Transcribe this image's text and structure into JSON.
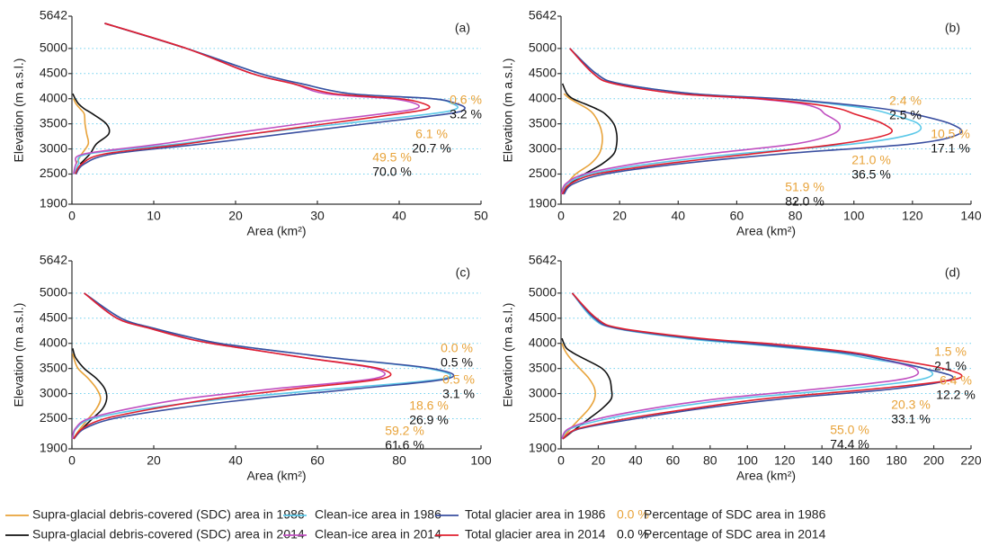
{
  "chart_data": [
    {
      "type": "line",
      "title": "(a)",
      "xlabel": "Area (km²)",
      "ylabel": "Elevation (m a.s.l.)",
      "xlim": [
        0,
        50
      ],
      "xticks": [
        0,
        10,
        20,
        30,
        40,
        50
      ],
      "ylim": [
        1900,
        5642
      ],
      "yticks": [
        1900,
        2500,
        3000,
        3500,
        4000,
        4500,
        5000,
        5642
      ],
      "grid": true,
      "y": [
        2100,
        2300,
        2500,
        2700,
        2900,
        3100,
        3300,
        3500,
        3700,
        3800,
        3900,
        4000,
        4100,
        4300,
        4500,
        5000,
        5500
      ],
      "series": [
        {
          "name": "Supra-glacial debris-covered (SDC) area in 1986",
          "color": "#e8a33a",
          "values": [
            null,
            null,
            null,
            0.5,
            1.2,
            2,
            1.8,
            1.6,
            1.5,
            1,
            0.5,
            0.2,
            null,
            null,
            null,
            null,
            null
          ]
        },
        {
          "name": "Supra-glacial debris-covered (SDC) area in 2014",
          "color": "#111111",
          "values": [
            null,
            null,
            null,
            1,
            2.2,
            3,
            4.5,
            4.2,
            2.5,
            1.5,
            0.8,
            0.4,
            0.1,
            null,
            null,
            null,
            null
          ]
        },
        {
          "name": "Clean-ice area in 1986",
          "color": "#5bc8e8",
          "values": [
            null,
            null,
            0.3,
            0.8,
            2,
            13,
            22,
            33,
            44,
            47,
            46.5,
            44,
            34,
            28,
            23,
            14,
            4
          ]
        },
        {
          "name": "Clean-ice area in 2014",
          "color": "#c04fc0",
          "values": [
            null,
            null,
            0.2,
            0.5,
            1.5,
            11,
            19,
            28,
            38,
            42,
            42,
            39,
            31,
            27,
            22,
            14,
            4
          ]
        },
        {
          "name": "Total glacier area in 1986",
          "color": "#3a4fa0",
          "values": [
            null,
            null,
            0.5,
            1.5,
            5,
            16,
            26,
            36,
            46,
            48,
            47,
            44,
            34,
            28,
            23,
            14,
            4
          ]
        },
        {
          "name": "Total glacier area in 2014",
          "color": "#e0202f",
          "values": [
            null,
            null,
            0.4,
            1.2,
            4,
            14,
            22,
            31,
            40,
            43.5,
            43,
            40,
            32,
            27,
            22,
            14,
            4
          ]
        }
      ],
      "percentages": [
        {
          "name": "Percentage of SDC area in 1986",
          "legend_sample": "0.0 %",
          "color": "#e8a33a",
          "values": [
            0.6,
            6.1,
            49.5
          ],
          "value_labels": [
            "0.6 %",
            "6.1 %",
            "49.5 %"
          ]
        },
        {
          "name": "Percentage of SDC area in 2014",
          "legend_sample": "0.0 %",
          "color": "#111111",
          "values": [
            3.2,
            20.7,
            70.0
          ],
          "value_labels": [
            "3.2 %",
            "20.7 %",
            "70.0 %"
          ]
        }
      ]
    },
    {
      "type": "line",
      "title": "(b)",
      "xlabel": "Area (km²)",
      "ylabel": "Elevation (m a.s.l.)",
      "xlim": [
        0,
        140
      ],
      "xticks": [
        0,
        20,
        40,
        60,
        80,
        100,
        120,
        140
      ],
      "ylim": [
        1900,
        5642
      ],
      "yticks": [
        1900,
        2500,
        3000,
        3500,
        4000,
        4500,
        5000,
        5642
      ],
      "grid": true,
      "y": [
        2100,
        2300,
        2500,
        2700,
        2900,
        3100,
        3300,
        3500,
        3700,
        3800,
        3900,
        4000,
        4100,
        4300,
        4500,
        5000,
        5500
      ],
      "series": [
        {
          "color": "#e8a33a",
          "values": [
            0.3,
            2,
            5,
            10,
            13,
            14,
            14,
            13,
            11,
            9,
            6,
            3,
            1,
            null,
            null,
            null,
            null
          ]
        },
        {
          "color": "#111111",
          "values": [
            0.5,
            3,
            8,
            14,
            18,
            19,
            19,
            18,
            15,
            12,
            8,
            4,
            2,
            0.5,
            null,
            null,
            null
          ]
        },
        {
          "color": "#5bc8e8",
          "values": [
            0.3,
            2,
            10,
            30,
            60,
            100,
            120,
            122,
            112,
            105,
            92,
            74,
            45,
            20,
            12,
            3,
            null
          ]
        },
        {
          "color": "#c04fc0",
          "values": [
            0.2,
            1.5,
            8,
            25,
            50,
            80,
            93,
            95,
            90,
            88,
            82,
            66,
            40,
            18,
            11,
            3,
            null
          ]
        },
        {
          "color": "#3a4fa0",
          "values": [
            1,
            4,
            15,
            40,
            75,
            120,
            136,
            133,
            120,
            110,
            95,
            75,
            45,
            20,
            12,
            3,
            null
          ]
        },
        {
          "color": "#e0202f",
          "values": [
            0.5,
            3,
            12,
            35,
            65,
            95,
            112,
            110,
            100,
            95,
            85,
            68,
            40,
            18,
            11,
            3,
            null
          ]
        }
      ],
      "percentages": [
        {
          "color": "#e8a33a",
          "values": [
            2.4,
            10.5,
            21.0,
            51.9
          ],
          "value_labels": [
            "2.4 %",
            "10.5 %",
            "21.0 %",
            "51.9 %"
          ]
        },
        {
          "color": "#111111",
          "values": [
            2.5,
            17.1,
            36.5,
            82.0
          ],
          "value_labels": [
            "2.5 %",
            "17.1 %",
            "36.5 %",
            "82.0 %"
          ]
        }
      ]
    },
    {
      "type": "line",
      "title": "(c)",
      "xlabel": "Area (km²)",
      "ylabel": "Elevation (m a.s.l.)",
      "xlim": [
        0,
        100
      ],
      "xticks": [
        0,
        20,
        40,
        60,
        80,
        100
      ],
      "ylim": [
        1900,
        5642
      ],
      "yticks": [
        1900,
        2500,
        3000,
        3500,
        4000,
        4500,
        5000,
        5642
      ],
      "grid": true,
      "y": [
        2100,
        2300,
        2500,
        2700,
        2900,
        3100,
        3300,
        3500,
        3700,
        3800,
        3900,
        4000,
        4100,
        4300,
        4500,
        5000,
        5500
      ],
      "series": [
        {
          "color": "#e8a33a",
          "values": [
            0.3,
            2,
            4,
            6,
            7,
            6,
            4,
            1.5,
            0.5,
            0.2,
            null,
            null,
            null,
            null,
            null,
            null,
            null
          ]
        },
        {
          "color": "#111111",
          "values": [
            0.4,
            2.5,
            5,
            7.5,
            8.5,
            8,
            6,
            3,
            1,
            0.5,
            0.2,
            null,
            null,
            null,
            null,
            null,
            null
          ]
        },
        {
          "color": "#5bc8e8",
          "values": [
            0.2,
            1,
            5,
            18,
            38,
            65,
            91,
            87,
            65,
            55,
            45,
            36,
            30,
            20,
            12,
            3,
            null
          ]
        },
        {
          "color": "#c04fc0",
          "values": [
            0.1,
            0.8,
            4,
            14,
            28,
            50,
            74,
            74,
            58,
            50,
            42,
            34,
            28,
            19,
            11,
            3,
            null
          ]
        },
        {
          "color": "#3a4fa0",
          "values": [
            0.5,
            3,
            10,
            25,
            45,
            70,
            92,
            88,
            65,
            55,
            45,
            36,
            30,
            20,
            12,
            3,
            null
          ]
        },
        {
          "color": "#e0202f",
          "values": [
            0.4,
            2.5,
            8,
            20,
            35,
            55,
            76,
            75,
            58,
            50,
            42,
            34,
            28,
            19,
            11,
            3,
            null
          ]
        }
      ],
      "percentages": [
        {
          "color": "#e8a33a",
          "values": [
            0.0,
            0.5,
            18.6,
            59.2
          ],
          "value_labels": [
            "0.0 %",
            "0.5 %",
            "18.6 %",
            "59.2 %"
          ]
        },
        {
          "color": "#111111",
          "values": [
            0.5,
            3.1,
            26.9,
            61.6
          ],
          "value_labels": [
            "0.5 %",
            "3.1 %",
            "26.9 %",
            "61.6 %"
          ]
        }
      ]
    },
    {
      "type": "line",
      "title": "(d)",
      "xlabel": "Area (km²)",
      "ylabel": "Elevation (m a.s.l.)",
      "xlim": [
        0,
        220
      ],
      "xticks": [
        0,
        20,
        40,
        60,
        80,
        100,
        120,
        140,
        160,
        180,
        200,
        220
      ],
      "ylim": [
        1900,
        5642
      ],
      "yticks": [
        1900,
        2500,
        3000,
        3500,
        4000,
        4500,
        5000,
        5642
      ],
      "grid": true,
      "y": [
        2100,
        2300,
        2500,
        2700,
        2900,
        3100,
        3300,
        3500,
        3700,
        3800,
        3900,
        4000,
        4100,
        4300,
        4500,
        5000,
        5500
      ],
      "series": [
        {
          "color": "#e8a33a",
          "values": [
            0.5,
            5,
            10,
            15,
            18,
            18,
            15,
            10,
            5,
            3,
            1.5,
            0.5,
            null,
            null,
            null,
            null,
            null
          ]
        },
        {
          "color": "#111111",
          "values": [
            1,
            8,
            15,
            22,
            27,
            27,
            26,
            22,
            12,
            7,
            3,
            1.5,
            0.5,
            null,
            null,
            null,
            null
          ]
        },
        {
          "color": "#5bc8e8",
          "values": [
            0.5,
            5,
            25,
            55,
            95,
            155,
            195,
            195,
            165,
            150,
            125,
            95,
            66,
            29,
            17,
            6,
            null
          ]
        },
        {
          "color": "#c04fc0",
          "values": [
            0.4,
            4,
            20,
            48,
            85,
            140,
            185,
            190,
            170,
            158,
            135,
            105,
            72,
            30,
            18,
            6,
            null
          ]
        },
        {
          "color": "#3a4fa0",
          "values": [
            1,
            10,
            40,
            75,
            120,
            180,
            210,
            195,
            170,
            155,
            130,
            100,
            70,
            30,
            18,
            6,
            null
          ]
        },
        {
          "color": "#e0202f",
          "values": [
            1,
            9,
            35,
            70,
            110,
            170,
            213,
            205,
            175,
            160,
            138,
            110,
            75,
            32,
            19,
            6,
            null
          ]
        }
      ],
      "percentages": [
        {
          "color": "#e8a33a",
          "values": [
            1.5,
            6.4,
            20.3,
            55.0
          ],
          "value_labels": [
            "1.5 %",
            "6.4 %",
            "20.3 %",
            "55.0 %"
          ]
        },
        {
          "color": "#111111",
          "values": [
            2.1,
            12.2,
            33.1,
            74.4
          ],
          "value_labels": [
            "2.1 %",
            "12.2 %",
            "33.1 %",
            "74.4 %"
          ]
        }
      ]
    }
  ]
}
